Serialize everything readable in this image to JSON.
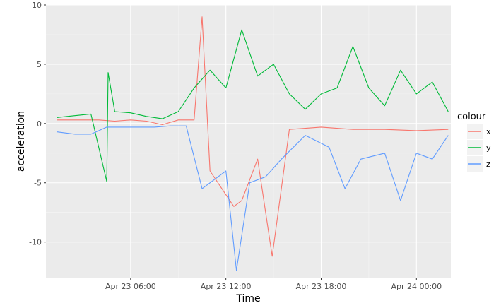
{
  "chart_data": {
    "type": "line",
    "xlabel": "Time",
    "ylabel": "acceleration",
    "x_ticks": [
      "Apr 23 06:00",
      "Apr 23 12:00",
      "Apr 23 18:00",
      "Apr 24 00:00"
    ],
    "y_ticks": [
      "10",
      "5",
      "0",
      "-5",
      "-10"
    ],
    "xlim": [
      "Apr 23 00:40",
      "Apr 24 02:10"
    ],
    "ylim": [
      -13.0,
      10.0
    ],
    "grid": true,
    "legend_title": "colour",
    "legend_position": "right",
    "series": [
      {
        "name": "x",
        "color": "#F8766D",
        "samples": [
          [
            "Apr 23 01:20",
            0.3
          ],
          [
            "Apr 23 02:30",
            0.3
          ],
          [
            "Apr 23 04:00",
            0.3
          ],
          [
            "Apr 23 05:00",
            0.2
          ],
          [
            "Apr 23 06:00",
            0.3
          ],
          [
            "Apr 23 07:00",
            0.2
          ],
          [
            "Apr 23 08:00",
            -0.1
          ],
          [
            "Apr 23 09:00",
            0.3
          ],
          [
            "Apr 23 10:00",
            0.3
          ],
          [
            "Apr 23 10:30",
            9.0
          ],
          [
            "Apr 23 11:00",
            -4.0
          ],
          [
            "Apr 23 12:30",
            -7.0
          ],
          [
            "Apr 23 13:00",
            -6.5
          ],
          [
            "Apr 23 14:00",
            -3.0
          ],
          [
            "Apr 23 14:55",
            -11.2
          ],
          [
            "Apr 23 16:00",
            -0.5
          ],
          [
            "Apr 23 18:00",
            -0.3
          ],
          [
            "Apr 23 20:00",
            -0.5
          ],
          [
            "Apr 23 22:00",
            -0.5
          ],
          [
            "Apr 24 00:00",
            -0.6
          ],
          [
            "Apr 24 02:00",
            -0.5
          ]
        ]
      },
      {
        "name": "y",
        "color": "#00BA38",
        "samples": [
          [
            "Apr 23 01:20",
            0.5
          ],
          [
            "Apr 23 02:00",
            0.6
          ],
          [
            "Apr 23 03:30",
            0.8
          ],
          [
            "Apr 23 04:30",
            -4.9
          ],
          [
            "Apr 23 04:35",
            4.3
          ],
          [
            "Apr 23 05:00",
            1.0
          ],
          [
            "Apr 23 06:00",
            0.9
          ],
          [
            "Apr 23 07:00",
            0.6
          ],
          [
            "Apr 23 08:00",
            0.4
          ],
          [
            "Apr 23 09:00",
            1.0
          ],
          [
            "Apr 23 10:00",
            3.0
          ],
          [
            "Apr 23 11:00",
            4.5
          ],
          [
            "Apr 23 12:00",
            3.0
          ],
          [
            "Apr 23 13:00",
            7.9
          ],
          [
            "Apr 23 14:00",
            4.0
          ],
          [
            "Apr 23 15:00",
            5.0
          ],
          [
            "Apr 23 16:00",
            2.5
          ],
          [
            "Apr 23 17:00",
            1.2
          ],
          [
            "Apr 23 18:00",
            2.5
          ],
          [
            "Apr 23 19:00",
            3.0
          ],
          [
            "Apr 23 20:00",
            6.5
          ],
          [
            "Apr 23 21:00",
            3.0
          ],
          [
            "Apr 23 22:00",
            1.5
          ],
          [
            "Apr 23 23:00",
            4.5
          ],
          [
            "Apr 24 00:00",
            2.5
          ],
          [
            "Apr 24 01:00",
            3.5
          ],
          [
            "Apr 24 02:00",
            1.0
          ]
        ]
      },
      {
        "name": "z",
        "color": "#619CFF",
        "samples": [
          [
            "Apr 23 01:20",
            -0.7
          ],
          [
            "Apr 23 02:30",
            -0.9
          ],
          [
            "Apr 23 03:30",
            -0.9
          ],
          [
            "Apr 23 04:30",
            -0.3
          ],
          [
            "Apr 23 05:30",
            -0.3
          ],
          [
            "Apr 23 06:30",
            -0.3
          ],
          [
            "Apr 23 07:30",
            -0.3
          ],
          [
            "Apr 23 08:30",
            -0.2
          ],
          [
            "Apr 23 09:30",
            -0.2
          ],
          [
            "Apr 23 10:30",
            -5.5
          ],
          [
            "Apr 23 12:00",
            -4.0
          ],
          [
            "Apr 23 12:40",
            -12.4
          ],
          [
            "Apr 23 13:30",
            -5.0
          ],
          [
            "Apr 23 14:30",
            -4.5
          ],
          [
            "Apr 23 15:30",
            -3.0
          ],
          [
            "Apr 23 17:00",
            -1.0
          ],
          [
            "Apr 23 18:30",
            -2.0
          ],
          [
            "Apr 23 19:30",
            -5.5
          ],
          [
            "Apr 23 20:30",
            -3.0
          ],
          [
            "Apr 23 22:00",
            -2.5
          ],
          [
            "Apr 23 23:00",
            -6.5
          ],
          [
            "Apr 24 00:00",
            -2.5
          ],
          [
            "Apr 24 01:00",
            -3.0
          ],
          [
            "Apr 24 02:00",
            -1.0
          ]
        ]
      }
    ]
  }
}
